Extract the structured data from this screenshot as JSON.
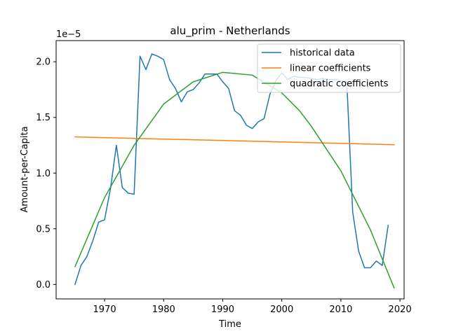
{
  "chart_data": {
    "type": "line",
    "title": "alu_prim - Netherlands",
    "xlabel": "Time",
    "ylabel": "Amount-per-Capita",
    "y_offset_label": "1e−5",
    "xlim": [
      1961.8,
      2020.7
    ],
    "ylim": [
      -0.13,
      2.19
    ],
    "x_ticks": [
      1970,
      1980,
      1990,
      2000,
      2010,
      2020
    ],
    "y_ticks": [
      0.0,
      0.5,
      1.0,
      1.5,
      2.0
    ],
    "x_tick_labels": [
      "1970",
      "1980",
      "1990",
      "2000",
      "2010",
      "2020"
    ],
    "y_tick_labels": [
      "0.0",
      "0.5",
      "1.0",
      "1.5",
      "2.0"
    ],
    "grid": false,
    "legend_position": "top-right",
    "series": [
      {
        "name": "historical data",
        "color": "#1f77b4",
        "x": [
          1965,
          1966,
          1967,
          1968,
          1969,
          1970,
          1971,
          1972,
          1973,
          1974,
          1975,
          1976,
          1977,
          1978,
          1979,
          1980,
          1981,
          1982,
          1983,
          1984,
          1985,
          1986,
          1987,
          1988,
          1989,
          1990,
          1991,
          1992,
          1993,
          1994,
          1995,
          1996,
          1997,
          1998,
          1999,
          2000,
          2001,
          2002,
          2003,
          2004,
          2005,
          2006,
          2007,
          2008,
          2009,
          2010,
          2011,
          2012,
          2013,
          2014,
          2015,
          2016,
          2017,
          2018
        ],
        "y": [
          0.0,
          0.17,
          0.25,
          0.39,
          0.56,
          0.58,
          0.86,
          1.25,
          0.87,
          0.82,
          0.81,
          2.05,
          1.93,
          2.07,
          2.05,
          2.02,
          1.84,
          1.76,
          1.64,
          1.73,
          1.75,
          1.81,
          1.89,
          1.89,
          1.89,
          1.82,
          1.76,
          1.56,
          1.52,
          1.43,
          1.4,
          1.46,
          1.49,
          1.71,
          1.83,
          1.9,
          1.84,
          1.87,
          1.86,
          1.86,
          1.85,
          1.84,
          1.85,
          1.84,
          1.84,
          1.83,
          1.82,
          0.65,
          0.3,
          0.15,
          0.15,
          0.21,
          0.17,
          0.53
        ]
      },
      {
        "name": "linear coefficients",
        "color": "#ff7f0e",
        "x": [
          1965,
          2019
        ],
        "y": [
          1.325,
          1.255
        ]
      },
      {
        "name": "quadratic coefficients",
        "color": "#2ca02c",
        "x": [
          1965,
          1970,
          1975,
          1980,
          1985,
          1990,
          1995,
          2000,
          2003,
          2005,
          2010,
          2015,
          2019
        ],
        "y": [
          0.16,
          0.78,
          1.25,
          1.62,
          1.82,
          1.905,
          1.88,
          1.72,
          1.56,
          1.42,
          1.02,
          0.49,
          -0.03
        ]
      }
    ]
  }
}
